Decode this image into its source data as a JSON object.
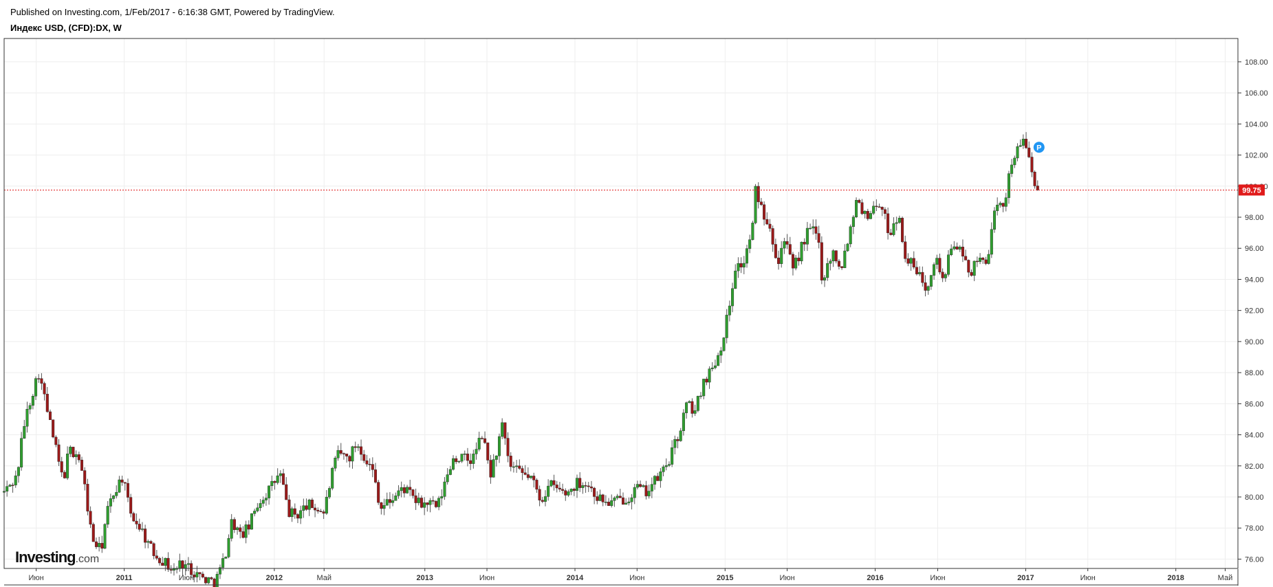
{
  "header": {
    "published": "Published on Investing.com, 1/Feb/2017 - 6:16:38 GMT, Powered by TradingView.",
    "symbol": "Индекс USD, (CFD):DX, W"
  },
  "logo": {
    "main": "Investing",
    "suffix": ".com"
  },
  "colors": {
    "up": "#2f9e2f",
    "down": "#9b1a1a",
    "wick": "#555555",
    "last": "#e01b1b",
    "marker": "#2196f3",
    "grid": "#eeeeee"
  },
  "marker_label": "P",
  "chart_data": {
    "type": "candlestick",
    "title": "Индекс USD, (CFD):DX, W",
    "timeframe": "W",
    "x_range": [
      "2010-03-15",
      "2018-06-01"
    ],
    "ylim": [
      75.4,
      109.5
    ],
    "y_ticks": [
      "76.00",
      "78.00",
      "80.00",
      "82.00",
      "84.00",
      "86.00",
      "88.00",
      "90.00",
      "92.00",
      "94.00",
      "96.00",
      "98.00",
      "100.00",
      "102.00",
      "104.00",
      "106.00",
      "108.00"
    ],
    "x_ticks": [
      {
        "date": "2010-06-01",
        "label": "Июн",
        "bold": false
      },
      {
        "date": "2011-01-01",
        "label": "2011",
        "bold": true
      },
      {
        "date": "2011-06-01",
        "label": "Июн",
        "bold": false
      },
      {
        "date": "2012-01-01",
        "label": "2012",
        "bold": true
      },
      {
        "date": "2012-05-01",
        "label": "Май",
        "bold": false
      },
      {
        "date": "2013-01-01",
        "label": "2013",
        "bold": true
      },
      {
        "date": "2013-06-01",
        "label": "Июн",
        "bold": false
      },
      {
        "date": "2014-01-01",
        "label": "2014",
        "bold": true
      },
      {
        "date": "2014-06-01",
        "label": "Июн",
        "bold": false
      },
      {
        "date": "2015-01-01",
        "label": "2015",
        "bold": true
      },
      {
        "date": "2015-06-01",
        "label": "Июн",
        "bold": false
      },
      {
        "date": "2016-01-01",
        "label": "2016",
        "bold": true
      },
      {
        "date": "2016-06-01",
        "label": "Июн",
        "bold": false
      },
      {
        "date": "2017-01-01",
        "label": "2017",
        "bold": true
      },
      {
        "date": "2017-06-01",
        "label": "Июн",
        "bold": false
      },
      {
        "date": "2018-01-01",
        "label": "2018",
        "bold": true
      },
      {
        "date": "2018-05-01",
        "label": "Май",
        "bold": false
      }
    ],
    "last_price": 99.75,
    "last_price_label": "99.75",
    "marker_date": "2017-01-20",
    "marker_value": 102.5,
    "grid": true,
    "series": [
      {
        "x": "2010-03-15",
        "close": 80.3
      },
      {
        "x": "2010-04-15",
        "close": 81.3
      },
      {
        "x": "2010-05-01",
        "close": 84.5
      },
      {
        "x": "2010-05-20",
        "close": 86.5
      },
      {
        "x": "2010-06-07",
        "close": 88.0
      },
      {
        "x": "2010-06-20",
        "close": 86.5
      },
      {
        "x": "2010-07-15",
        "close": 83.5
      },
      {
        "x": "2010-08-05",
        "close": 81.0
      },
      {
        "x": "2010-08-20",
        "close": 83.0
      },
      {
        "x": "2010-09-10",
        "close": 82.8
      },
      {
        "x": "2010-09-25",
        "close": 81.0
      },
      {
        "x": "2010-10-15",
        "close": 77.3
      },
      {
        "x": "2010-11-05",
        "close": 76.5
      },
      {
        "x": "2010-11-20",
        "close": 79.0
      },
      {
        "x": "2010-12-10",
        "close": 80.5
      },
      {
        "x": "2010-12-28",
        "close": 81.3
      },
      {
        "x": "2011-01-15",
        "close": 79.0
      },
      {
        "x": "2011-02-10",
        "close": 78.0
      },
      {
        "x": "2011-03-10",
        "close": 76.5
      },
      {
        "x": "2011-04-10",
        "close": 75.8
      },
      {
        "x": "2011-05-01",
        "close": 75.2
      },
      {
        "x": "2011-05-20",
        "close": 75.8
      },
      {
        "x": "2011-06-15",
        "close": 75.3
      },
      {
        "x": "2011-07-10",
        "close": 74.8
      },
      {
        "x": "2011-08-10",
        "close": 74.5
      },
      {
        "x": "2011-09-01",
        "close": 76.0
      },
      {
        "x": "2011-09-20",
        "close": 78.5
      },
      {
        "x": "2011-10-10",
        "close": 77.5
      },
      {
        "x": "2011-10-30",
        "close": 78.0
      },
      {
        "x": "2011-11-20",
        "close": 79.5
      },
      {
        "x": "2011-12-20",
        "close": 80.5
      },
      {
        "x": "2012-01-15",
        "close": 81.5
      },
      {
        "x": "2012-02-05",
        "close": 79.0
      },
      {
        "x": "2012-02-25",
        "close": 78.8
      },
      {
        "x": "2012-03-20",
        "close": 79.5
      },
      {
        "x": "2012-04-10",
        "close": 79.3
      },
      {
        "x": "2012-05-01",
        "close": 79.0
      },
      {
        "x": "2012-05-20",
        "close": 81.5
      },
      {
        "x": "2012-06-05",
        "close": 82.8
      },
      {
        "x": "2012-06-30",
        "close": 82.5
      },
      {
        "x": "2012-07-20",
        "close": 83.5
      },
      {
        "x": "2012-08-10",
        "close": 82.5
      },
      {
        "x": "2012-08-30",
        "close": 81.5
      },
      {
        "x": "2012-09-15",
        "close": 79.3
      },
      {
        "x": "2012-10-10",
        "close": 79.8
      },
      {
        "x": "2012-11-10",
        "close": 80.6
      },
      {
        "x": "2012-12-01",
        "close": 80.0
      },
      {
        "x": "2012-12-20",
        "close": 79.5
      },
      {
        "x": "2013-01-10",
        "close": 79.6
      },
      {
        "x": "2013-02-01",
        "close": 79.3
      },
      {
        "x": "2013-02-20",
        "close": 81.0
      },
      {
        "x": "2013-03-10",
        "close": 82.5
      },
      {
        "x": "2013-04-01",
        "close": 82.5
      },
      {
        "x": "2013-04-25",
        "close": 82.3
      },
      {
        "x": "2013-05-20",
        "close": 84.0
      },
      {
        "x": "2013-06-10",
        "close": 81.5
      },
      {
        "x": "2013-06-25",
        "close": 83.0
      },
      {
        "x": "2013-07-08",
        "close": 84.5
      },
      {
        "x": "2013-07-25",
        "close": 82.0
      },
      {
        "x": "2013-08-20",
        "close": 81.5
      },
      {
        "x": "2013-09-15",
        "close": 81.3
      },
      {
        "x": "2013-10-10",
        "close": 79.8
      },
      {
        "x": "2013-11-01",
        "close": 80.8
      },
      {
        "x": "2013-11-20",
        "close": 80.5
      },
      {
        "x": "2013-12-10",
        "close": 80.2
      },
      {
        "x": "2014-01-10",
        "close": 81.0
      },
      {
        "x": "2014-02-01",
        "close": 80.8
      },
      {
        "x": "2014-02-25",
        "close": 80.0
      },
      {
        "x": "2014-03-20",
        "close": 79.6
      },
      {
        "x": "2014-04-10",
        "close": 79.7
      },
      {
        "x": "2014-05-10",
        "close": 80.0
      },
      {
        "x": "2014-06-01",
        "close": 80.6
      },
      {
        "x": "2014-06-20",
        "close": 80.3
      },
      {
        "x": "2014-07-15",
        "close": 81.0
      },
      {
        "x": "2014-08-01",
        "close": 81.6
      },
      {
        "x": "2014-08-20",
        "close": 82.5
      },
      {
        "x": "2014-09-10",
        "close": 84.0
      },
      {
        "x": "2014-09-30",
        "close": 86.0
      },
      {
        "x": "2014-10-20",
        "close": 85.5
      },
      {
        "x": "2014-11-10",
        "close": 87.5
      },
      {
        "x": "2014-12-01",
        "close": 88.3
      },
      {
        "x": "2014-12-20",
        "close": 89.5
      },
      {
        "x": "2015-01-10",
        "close": 92.0
      },
      {
        "x": "2015-01-25",
        "close": 94.8
      },
      {
        "x": "2015-02-15",
        "close": 95.0
      },
      {
        "x": "2015-03-10",
        "close": 97.5
      },
      {
        "x": "2015-03-15",
        "close": 99.8
      },
      {
        "x": "2015-04-01",
        "close": 98.5
      },
      {
        "x": "2015-04-20",
        "close": 97.5
      },
      {
        "x": "2015-05-10",
        "close": 95.0
      },
      {
        "x": "2015-05-25",
        "close": 96.8
      },
      {
        "x": "2015-06-15",
        "close": 94.5
      },
      {
        "x": "2015-07-05",
        "close": 96.0
      },
      {
        "x": "2015-07-25",
        "close": 97.3
      },
      {
        "x": "2015-08-15",
        "close": 96.8
      },
      {
        "x": "2015-08-25",
        "close": 94.0
      },
      {
        "x": "2015-09-20",
        "close": 95.8
      },
      {
        "x": "2015-10-10",
        "close": 94.8
      },
      {
        "x": "2015-10-30",
        "close": 97.0
      },
      {
        "x": "2015-11-20",
        "close": 99.6
      },
      {
        "x": "2015-12-05",
        "close": 98.0
      },
      {
        "x": "2015-12-25",
        "close": 98.5
      },
      {
        "x": "2016-01-10",
        "close": 99.0
      },
      {
        "x": "2016-02-05",
        "close": 97.0
      },
      {
        "x": "2016-02-25",
        "close": 98.2
      },
      {
        "x": "2016-03-15",
        "close": 95.5
      },
      {
        "x": "2016-04-10",
        "close": 94.5
      },
      {
        "x": "2016-05-05",
        "close": 93.5
      },
      {
        "x": "2016-05-25",
        "close": 95.5
      },
      {
        "x": "2016-06-15",
        "close": 94.0
      },
      {
        "x": "2016-07-10",
        "close": 96.5
      },
      {
        "x": "2016-07-30",
        "close": 95.5
      },
      {
        "x": "2016-08-20",
        "close": 94.5
      },
      {
        "x": "2016-09-10",
        "close": 95.2
      },
      {
        "x": "2016-09-30",
        "close": 95.4
      },
      {
        "x": "2016-10-20",
        "close": 98.5
      },
      {
        "x": "2016-11-10",
        "close": 98.8
      },
      {
        "x": "2016-11-25",
        "close": 101.5
      },
      {
        "x": "2016-12-15",
        "close": 102.5
      },
      {
        "x": "2017-01-01",
        "close": 102.8
      },
      {
        "x": "2017-01-15",
        "close": 101.0
      },
      {
        "x": "2017-01-31",
        "close": 99.75
      }
    ]
  }
}
